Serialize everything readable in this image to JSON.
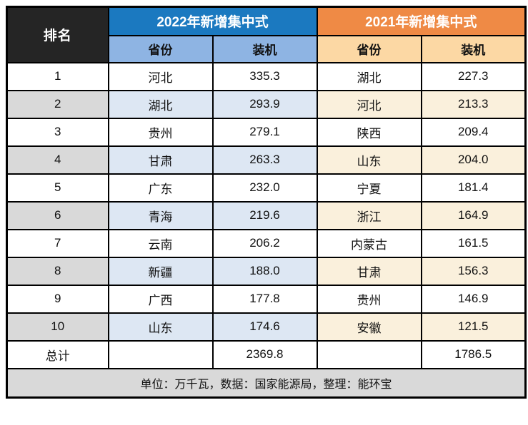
{
  "table": {
    "rank_header": "排名",
    "col_2022": {
      "title": "2022年新增集中式",
      "province_header": "省份",
      "capacity_header": "装机",
      "total": "2369.8"
    },
    "col_2021": {
      "title": "2021年新增集中式",
      "province_header": "省份",
      "capacity_header": "装机",
      "total": "1786.5"
    },
    "rows": [
      {
        "rank": "1",
        "province_2022": "河北",
        "capacity_2022": "335.3",
        "province_2021": "湖北",
        "capacity_2021": "227.3"
      },
      {
        "rank": "2",
        "province_2022": "湖北",
        "capacity_2022": "293.9",
        "province_2021": "河北",
        "capacity_2021": "213.3"
      },
      {
        "rank": "3",
        "province_2022": "贵州",
        "capacity_2022": "279.1",
        "province_2021": "陕西",
        "capacity_2021": "209.4"
      },
      {
        "rank": "4",
        "province_2022": "甘肃",
        "capacity_2022": "263.3",
        "province_2021": "山东",
        "capacity_2021": "204.0"
      },
      {
        "rank": "5",
        "province_2022": "广东",
        "capacity_2022": "232.0",
        "province_2021": "宁夏",
        "capacity_2021": "181.4"
      },
      {
        "rank": "6",
        "province_2022": "青海",
        "capacity_2022": "219.6",
        "province_2021": "浙江",
        "capacity_2021": "164.9"
      },
      {
        "rank": "7",
        "province_2022": "云南",
        "capacity_2022": "206.2",
        "province_2021": "内蒙古",
        "capacity_2021": "161.5"
      },
      {
        "rank": "8",
        "province_2022": "新疆",
        "capacity_2022": "188.0",
        "province_2021": "甘肃",
        "capacity_2021": "156.3"
      },
      {
        "rank": "9",
        "province_2022": "广西",
        "capacity_2022": "177.8",
        "province_2021": "贵州",
        "capacity_2021": "146.9"
      },
      {
        "rank": "10",
        "province_2022": "山东",
        "capacity_2022": "174.6",
        "province_2021": "安徽",
        "capacity_2021": "121.5"
      }
    ],
    "total_label": "总计",
    "footer_note": "单位：万千瓦，数据：国家能源局，整理：能环宝"
  },
  "colors": {
    "rank_header_bg": "#252525",
    "header_2022_bg": "#1b79c0",
    "header_2021_bg": "#ef8a45",
    "subheader_2022_bg": "#8eb4e3",
    "subheader_2021_bg": "#fcd8a4",
    "tint_rank": "#d9d9d9",
    "tint_2022": "#dde7f3",
    "tint_2021": "#faf0dc",
    "footer_bg": "#d9d9d9",
    "border": "#000000"
  },
  "chart_data": {
    "type": "table",
    "columns": [
      "排名",
      "2022年新增集中式 省份",
      "2022年新增集中式 装机",
      "2021年新增集中式 省份",
      "2021年新增集中式 装机"
    ],
    "rows": [
      [
        1,
        "河北",
        335.3,
        "湖北",
        227.3
      ],
      [
        2,
        "湖北",
        293.9,
        "河北",
        213.3
      ],
      [
        3,
        "贵州",
        279.1,
        "陕西",
        209.4
      ],
      [
        4,
        "甘肃",
        263.3,
        "山东",
        204.0
      ],
      [
        5,
        "广东",
        232.0,
        "宁夏",
        181.4
      ],
      [
        6,
        "青海",
        219.6,
        "浙江",
        164.9
      ],
      [
        7,
        "云南",
        206.2,
        "内蒙古",
        161.5
      ],
      [
        8,
        "新疆",
        188.0,
        "甘肃",
        156.3
      ],
      [
        9,
        "广西",
        177.8,
        "贵州",
        146.9
      ],
      [
        10,
        "山东",
        174.6,
        "安徽",
        121.5
      ]
    ],
    "totals": {
      "total_2022": 2369.8,
      "total_2021": 1786.5
    },
    "footnote": "单位：万千瓦，数据：国家能源局，整理：能环宝"
  }
}
